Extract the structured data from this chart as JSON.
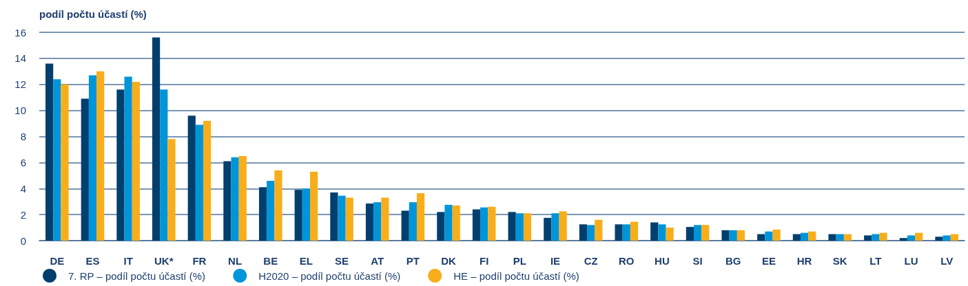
{
  "chart_data": {
    "type": "bar",
    "ylabel": "podíl počtu účastí (%)",
    "categories": [
      "DE",
      "ES",
      "IT",
      "UK*",
      "FR",
      "NL",
      "BE",
      "EL",
      "SE",
      "AT",
      "PT",
      "DK",
      "FI",
      "PL",
      "IE",
      "CZ",
      "RO",
      "HU",
      "SI",
      "BG",
      "EE",
      "HR",
      "SK",
      "LT",
      "LU",
      "LV"
    ],
    "series": [
      {
        "name": "7. RP – podíl počtu účastí (%)",
        "color": "#003f6e",
        "values": [
          13.6,
          10.9,
          11.6,
          15.6,
          9.6,
          6.1,
          4.1,
          3.9,
          3.7,
          2.85,
          2.3,
          2.2,
          2.4,
          2.2,
          1.75,
          1.25,
          1.25,
          1.4,
          1.05,
          0.8,
          0.5,
          0.5,
          0.5,
          0.4,
          0.2,
          0.3
        ]
      },
      {
        "name": "H2020 – podíl počtu účastí (%)",
        "color": "#0095d8",
        "values": [
          12.4,
          12.7,
          12.6,
          11.6,
          8.9,
          6.4,
          4.6,
          4.0,
          3.45,
          2.95,
          2.95,
          2.75,
          2.55,
          2.1,
          2.1,
          1.2,
          1.25,
          1.25,
          1.2,
          0.8,
          0.7,
          0.6,
          0.5,
          0.5,
          0.4,
          0.4
        ]
      },
      {
        "name": "HE – podíl počtu účastí (%)",
        "color": "#f8ae1b",
        "values": [
          12.0,
          13.0,
          12.2,
          7.8,
          9.2,
          6.5,
          5.4,
          5.3,
          3.3,
          3.3,
          3.65,
          2.7,
          2.6,
          2.1,
          2.25,
          1.6,
          1.45,
          1.0,
          1.2,
          0.8,
          0.85,
          0.7,
          0.5,
          0.6,
          0.6,
          0.5
        ]
      }
    ],
    "ylim": [
      0,
      16
    ],
    "yticks": [
      0,
      2,
      4,
      6,
      8,
      10,
      12,
      14,
      16
    ],
    "grid": "y",
    "legend": "bottom left"
  }
}
